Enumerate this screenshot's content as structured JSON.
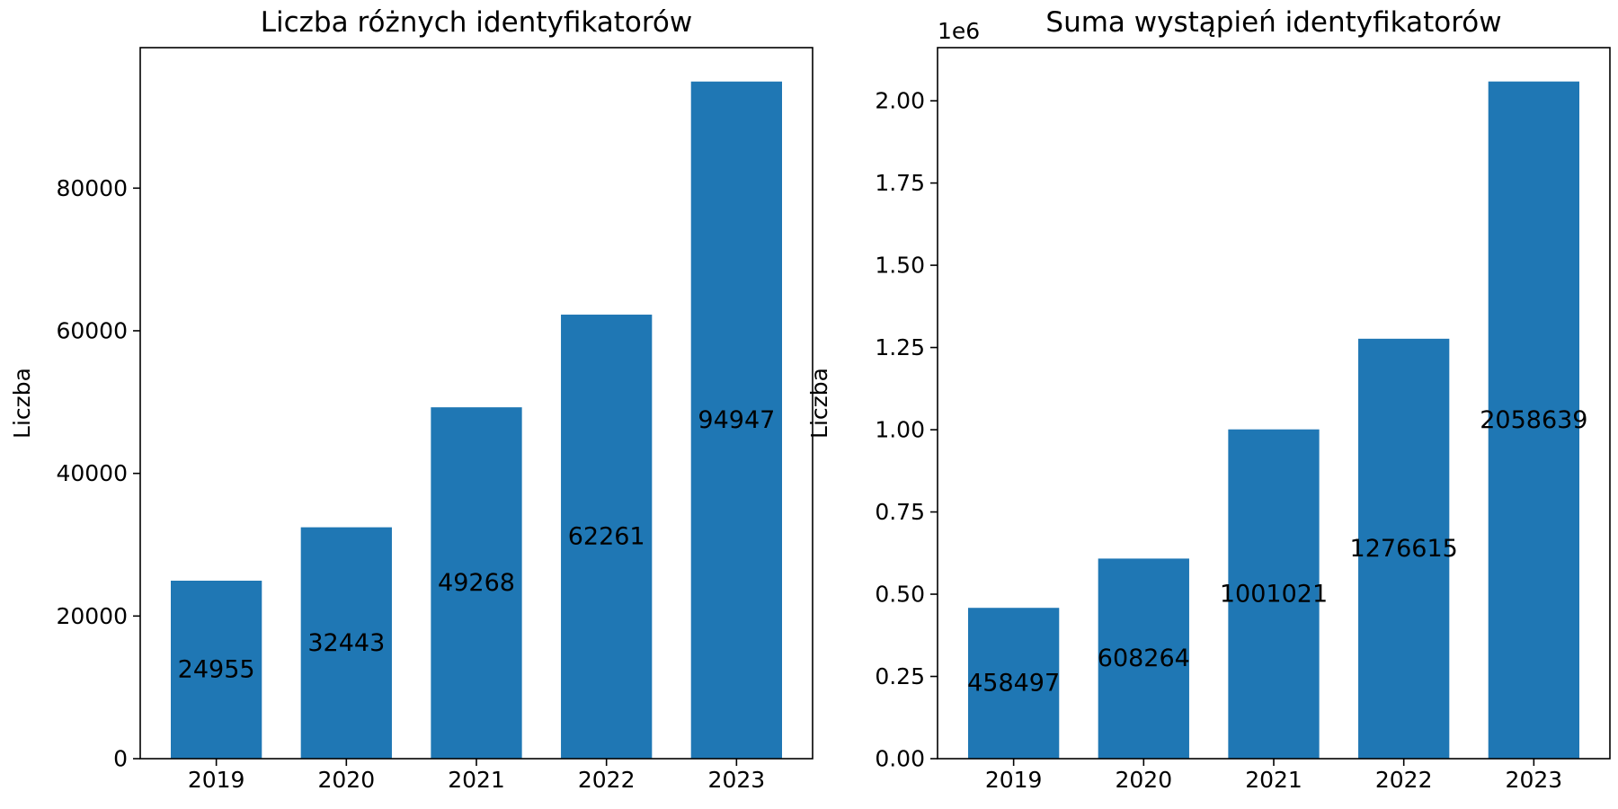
{
  "chart_data": [
    {
      "type": "bar",
      "title": "Liczba różnych identyfikatorów",
      "xlabel": "",
      "ylabel": "Liczba",
      "categories": [
        "2019",
        "2020",
        "2021",
        "2022",
        "2023"
      ],
      "values": [
        24955,
        32443,
        49268,
        62261,
        94947
      ],
      "data_labels": [
        "24955",
        "32443",
        "49268",
        "62261",
        "94947"
      ],
      "ylim": [
        0,
        99700
      ],
      "yticks": [
        0,
        20000,
        40000,
        60000,
        80000
      ],
      "ytick_labels": [
        "0",
        "20000",
        "40000",
        "60000",
        "80000"
      ],
      "offset_label": "",
      "bar_color": "#1f77b4",
      "grid": false,
      "legend": "none"
    },
    {
      "type": "bar",
      "title": "Suma wystąpień identyfikatorów",
      "xlabel": "",
      "ylabel": "Liczba",
      "categories": [
        "2019",
        "2020",
        "2021",
        "2022",
        "2023"
      ],
      "values": [
        458497,
        608264,
        1001021,
        1276615,
        2058639
      ],
      "data_labels": [
        "458497",
        "608264",
        "1001021",
        "1276615",
        "2058639"
      ],
      "ylim": [
        0,
        2161571
      ],
      "yticks": [
        0,
        250000,
        500000,
        750000,
        1000000,
        1250000,
        1500000,
        1750000,
        2000000
      ],
      "ytick_labels": [
        "0.00",
        "0.25",
        "0.50",
        "0.75",
        "1.00",
        "1.25",
        "1.50",
        "1.75",
        "2.00"
      ],
      "offset_label": "1e6",
      "bar_color": "#1f77b4",
      "grid": false,
      "legend": "none"
    }
  ]
}
